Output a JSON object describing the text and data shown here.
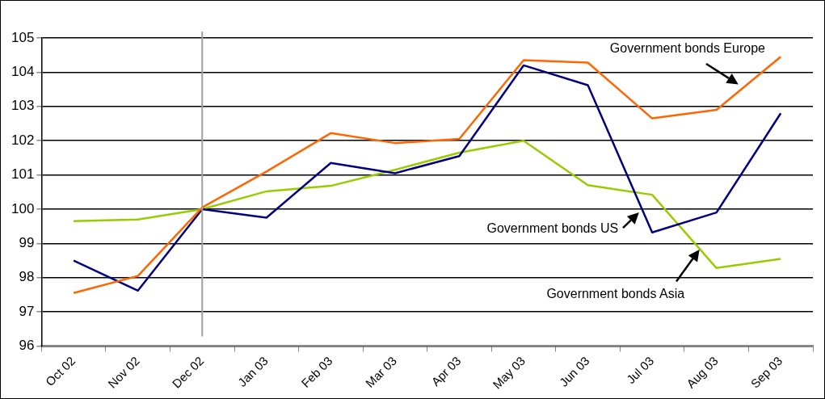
{
  "chart_data": {
    "type": "line",
    "categories": [
      "Oct 02",
      "Nov 02",
      "Dec 02",
      "Jan 03",
      "Feb 03",
      "Mar 03",
      "Apr 03",
      "May 03",
      "Jun 03",
      "Jul 03",
      "Aug 03",
      "Sep 03"
    ],
    "series": [
      {
        "name": "Government bonds Europe",
        "color": "#ff6600",
        "values": [
          97.55,
          98.05,
          100.05,
          101.1,
          102.22,
          101.93,
          102.05,
          104.35,
          104.28,
          102.65,
          102.9,
          104.45
        ]
      },
      {
        "name": "Government bonds US",
        "color": "#000080",
        "values": [
          98.5,
          97.62,
          100.0,
          99.75,
          101.35,
          101.05,
          101.55,
          104.2,
          103.62,
          99.32,
          99.9,
          102.8
        ]
      },
      {
        "name": "Government bonds Asia",
        "color": "#99cc00",
        "values": [
          99.65,
          99.7,
          100.0,
          100.52,
          100.68,
          101.15,
          101.65,
          102.0,
          100.7,
          100.42,
          98.28,
          98.55
        ]
      }
    ],
    "ylim": [
      96,
      105
    ],
    "yticks": [
      96,
      97,
      98,
      99,
      100,
      101,
      102,
      103,
      104,
      105
    ],
    "grid": "y",
    "legend": false,
    "marker": "none",
    "line_style": "solid",
    "ref_lines": [
      {
        "axis": "x",
        "value": "Dec 02",
        "color": "#a0a0a0"
      }
    ]
  }
}
